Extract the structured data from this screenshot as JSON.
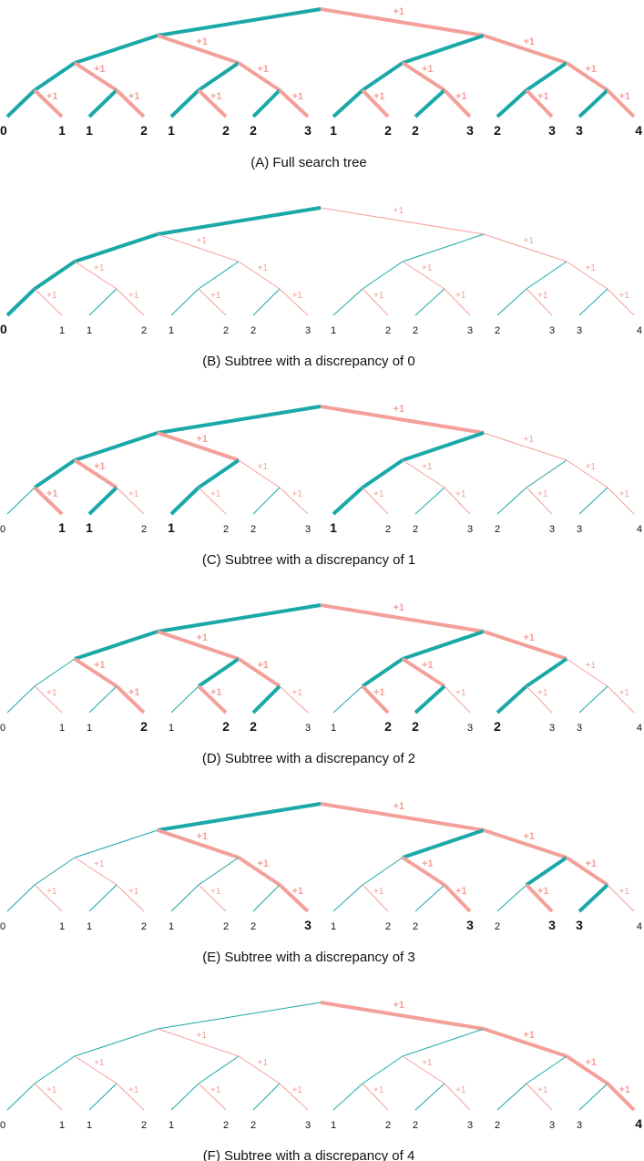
{
  "diagrams": [
    {
      "caption": "(A) Full search tree",
      "discrepancy": null
    },
    {
      "caption": "(B) Subtree with a discrepancy of 0",
      "discrepancy": 0
    },
    {
      "caption": "(C) Subtree with a discrepancy of 1",
      "discrepancy": 1
    },
    {
      "caption": "(D) Subtree with a discrepancy of 2",
      "discrepancy": 2
    },
    {
      "caption": "(E) Subtree with a discrepancy of 3",
      "discrepancy": 3
    },
    {
      "caption": "(F) Subtree with a discrepancy of 4",
      "discrepancy": 4
    }
  ],
  "increment_label": "+1",
  "leaf_values": [
    "0",
    "1",
    "1",
    "2",
    "1",
    "2",
    "2",
    "3",
    "1",
    "2",
    "2",
    "3",
    "2",
    "3",
    "3",
    "4"
  ],
  "colors": {
    "left_branch": "#1aa8a8",
    "right_branch": "#f4a09a",
    "text": "#111111"
  }
}
